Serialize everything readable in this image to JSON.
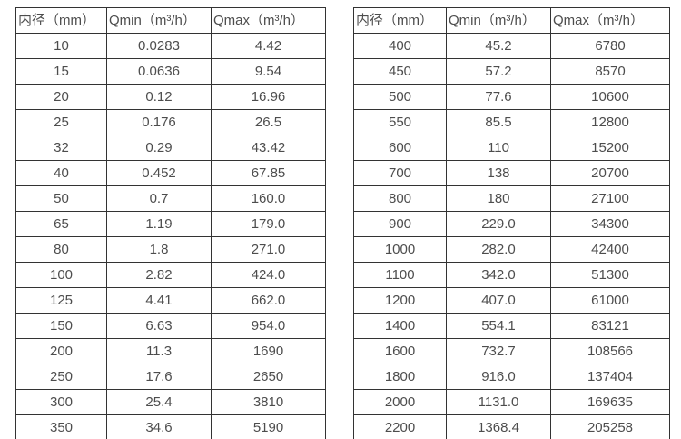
{
  "left_table": {
    "columns": [
      "内径（mm）",
      "Qmin（m³/h）",
      "Qmax（m³/h）"
    ],
    "rows": [
      [
        "10",
        "0.0283",
        "4.42"
      ],
      [
        "15",
        "0.0636",
        "9.54"
      ],
      [
        "20",
        "0.12",
        "16.96"
      ],
      [
        "25",
        "0.176",
        "26.5"
      ],
      [
        "32",
        "0.29",
        "43.42"
      ],
      [
        "40",
        "0.452",
        "67.85"
      ],
      [
        "50",
        "0.7",
        "160.0"
      ],
      [
        "65",
        "1.19",
        "179.0"
      ],
      [
        "80",
        "1.8",
        "271.0"
      ],
      [
        "100",
        "2.82",
        "424.0"
      ],
      [
        "125",
        "4.41",
        "662.0"
      ],
      [
        "150",
        "6.63",
        "954.0"
      ],
      [
        "200",
        "11.3",
        "1690"
      ],
      [
        "250",
        "17.6",
        "2650"
      ],
      [
        "300",
        "25.4",
        "3810"
      ],
      [
        "350",
        "34.6",
        "5190"
      ]
    ]
  },
  "right_table": {
    "columns": [
      "内径（mm）",
      "Qmin（m³/h）",
      "Qmax（m³/h）"
    ],
    "rows": [
      [
        "400",
        "45.2",
        "6780"
      ],
      [
        "450",
        "57.2",
        "8570"
      ],
      [
        "500",
        "77.6",
        "10600"
      ],
      [
        "550",
        "85.5",
        "12800"
      ],
      [
        "600",
        "110",
        "15200"
      ],
      [
        "700",
        "138",
        "20700"
      ],
      [
        "800",
        "180",
        "27100"
      ],
      [
        "900",
        "229.0",
        "34300"
      ],
      [
        "1000",
        "282.0",
        "42400"
      ],
      [
        "1100",
        "342.0",
        "51300"
      ],
      [
        "1200",
        "407.0",
        "61000"
      ],
      [
        "1400",
        "554.1",
        "83121"
      ],
      [
        "1600",
        "732.7",
        "108566"
      ],
      [
        "1800",
        "916.0",
        "137404"
      ],
      [
        "2000",
        "1131.0",
        "169635"
      ],
      [
        "2200",
        "1368.4",
        "205258"
      ]
    ]
  },
  "colors": {
    "background": "#ffffff",
    "border": "#333333",
    "text": "#4d4d4d"
  }
}
